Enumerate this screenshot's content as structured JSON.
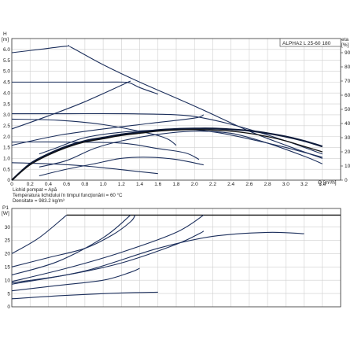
{
  "header": {
    "model_label": "ALPHA2 L 25-60 180",
    "units_right": "eta"
  },
  "notes": [
    "Lichid pompat = Apă",
    "Temperatura lichidului în timpul funcţionării = 60 °C",
    "Densitate = 983.2 kg/m³"
  ],
  "chart_data": [
    {
      "id": "head",
      "type": "line",
      "title": "",
      "ylabel": "H",
      "yunit": "[m]",
      "xlabel": "Q",
      "xunit": "[m³/h]",
      "y2label": "eta",
      "y2unit": "[%]",
      "xlim": [
        0,
        3.6
      ],
      "ylim": [
        0,
        6.5
      ],
      "y2lim": [
        0,
        100
      ],
      "xticks": [
        "0",
        "0.2",
        "0.4",
        "0.6",
        "0.8",
        "1.0",
        "1.2",
        "1.4",
        "1.6",
        "1.8",
        "2.0",
        "2.2",
        "2.4",
        "2.6",
        "2.8",
        "3.0",
        "3.2",
        "3.4"
      ],
      "yticks": [
        "0",
        "0.5",
        "1.0",
        "1.5",
        "2.0",
        "2.5",
        "3.0",
        "3.5",
        "4.0",
        "4.5",
        "5.0",
        "5.5",
        "6.0"
      ],
      "y2ticks": [
        "0",
        "10",
        "20",
        "30",
        "40",
        "50",
        "60",
        "70",
        "80",
        "90"
      ],
      "grid": true,
      "series": [
        {
          "style": "curve",
          "points": [
            [
              0,
              5.85
            ],
            [
              0.3,
              6.0
            ],
            [
              0.6,
              6.15
            ],
            [
              0.65,
              6.1
            ],
            [
              1.0,
              5.3
            ],
            [
              1.4,
              4.5
            ],
            [
              2.0,
              3.4
            ],
            [
              2.6,
              2.25
            ],
            [
              3.0,
              1.6
            ],
            [
              3.4,
              1.0
            ]
          ]
        },
        {
          "style": "curve",
          "points": [
            [
              0,
              4.5
            ],
            [
              0.6,
              4.5
            ],
            [
              1.0,
              4.5
            ],
            [
              1.22,
              4.5
            ],
            [
              1.3,
              4.45
            ],
            [
              1.4,
              4.25
            ],
            [
              1.6,
              3.95
            ]
          ]
        },
        {
          "style": "curve",
          "points": [
            [
              0,
              3.05
            ],
            [
              0.6,
              3.05
            ],
            [
              1.2,
              3.05
            ],
            [
              1.8,
              3.0
            ],
            [
              2.1,
              2.85
            ],
            [
              2.5,
              2.45
            ],
            [
              3.0,
              1.8
            ],
            [
              3.4,
              1.2
            ]
          ]
        },
        {
          "style": "curve",
          "points": [
            [
              0,
              2.8
            ],
            [
              0.5,
              2.75
            ],
            [
              1.0,
              2.55
            ],
            [
              1.5,
              2.15
            ],
            [
              1.7,
              1.9
            ],
            [
              1.8,
              1.6
            ]
          ]
        },
        {
          "style": "curve",
          "points": [
            [
              0,
              1.75
            ],
            [
              0.6,
              1.75
            ],
            [
              1.2,
              1.7
            ],
            [
              1.6,
              1.45
            ],
            [
              1.9,
              1.25
            ],
            [
              2.05,
              0.95
            ]
          ]
        },
        {
          "style": "curve",
          "points": [
            [
              0,
              0.8
            ],
            [
              0.4,
              0.75
            ],
            [
              0.8,
              0.65
            ],
            [
              1.2,
              0.48
            ],
            [
              1.6,
              0.3
            ]
          ]
        },
        {
          "style": "curve",
          "points": [
            [
              0,
              2.35
            ],
            [
              0.4,
              2.95
            ],
            [
              0.8,
              3.6
            ],
            [
              1.3,
              4.55
            ]
          ]
        },
        {
          "style": "curve",
          "points": [
            [
              0,
              1.6
            ],
            [
              0.5,
              2.05
            ],
            [
              1.0,
              2.35
            ],
            [
              1.5,
              2.6
            ],
            [
              2.0,
              2.85
            ],
            [
              2.1,
              3.0
            ]
          ]
        },
        {
          "style": "curve",
          "points": [
            [
              0.3,
              1.2
            ],
            [
              0.5,
              1.5
            ],
            [
              0.8,
              1.95
            ],
            [
              1.2,
              2.2
            ],
            [
              1.6,
              2.3
            ],
            [
              1.9,
              2.35
            ],
            [
              2.3,
              2.15
            ],
            [
              2.8,
              1.7
            ],
            [
              3.0,
              1.5
            ],
            [
              3.4,
              1.05
            ]
          ]
        },
        {
          "style": "curve",
          "points": [
            [
              0.3,
              0.6
            ],
            [
              0.6,
              0.9
            ],
            [
              0.9,
              1.45
            ],
            [
              1.2,
              1.8
            ],
            [
              1.6,
              2.1
            ],
            [
              2.0,
              2.25
            ],
            [
              2.4,
              2.15
            ],
            [
              2.8,
              1.7
            ],
            [
              3.2,
              1.1
            ],
            [
              3.4,
              0.75
            ]
          ]
        },
        {
          "style": "curve",
          "points": [
            [
              0.3,
              0.2
            ],
            [
              0.6,
              0.5
            ],
            [
              0.9,
              0.75
            ],
            [
              1.2,
              1.0
            ],
            [
              1.5,
              1.05
            ],
            [
              1.8,
              0.95
            ],
            [
              2.1,
              0.7
            ]
          ]
        },
        {
          "style": "bold",
          "points": [
            [
              0,
              0
            ],
            [
              0.2,
              0.75
            ],
            [
              0.4,
              1.2
            ],
            [
              0.6,
              1.55
            ],
            [
              0.8,
              1.8
            ],
            [
              1.0,
              1.95
            ],
            [
              1.2,
              2.1
            ],
            [
              1.4,
              2.2
            ],
            [
              1.6,
              2.3
            ],
            [
              1.8,
              2.35
            ],
            [
              2.0,
              2.37
            ],
            [
              2.2,
              2.37
            ],
            [
              2.4,
              2.33
            ],
            [
              2.6,
              2.27
            ],
            [
              2.8,
              2.15
            ],
            [
              3.0,
              2.0
            ],
            [
              3.2,
              1.8
            ],
            [
              3.4,
              1.55
            ]
          ]
        },
        {
          "style": "black",
          "points": [
            [
              0,
              0
            ],
            [
              0.2,
              0.7
            ],
            [
              0.4,
              1.15
            ],
            [
              0.6,
              1.5
            ],
            [
              0.8,
              1.75
            ],
            [
              1.0,
              1.9
            ],
            [
              1.2,
              2.05
            ],
            [
              1.4,
              2.15
            ],
            [
              1.6,
              2.25
            ],
            [
              1.8,
              2.3
            ],
            [
              2.0,
              2.32
            ],
            [
              2.2,
              2.3
            ],
            [
              2.4,
              2.25
            ],
            [
              2.6,
              2.15
            ],
            [
              2.8,
              2.0
            ],
            [
              3.0,
              1.8
            ],
            [
              3.2,
              1.55
            ],
            [
              3.4,
              1.3
            ]
          ]
        }
      ]
    },
    {
      "id": "power",
      "type": "line",
      "title": "",
      "ylabel": "P1",
      "yunit": "[W]",
      "xlim": [
        0,
        3.6
      ],
      "ylim": [
        0,
        37
      ],
      "yticks": [
        "0",
        "5",
        "10",
        "15",
        "20",
        "25",
        "30"
      ],
      "grid": true,
      "series": [
        {
          "style": "black",
          "points": [
            [
              0.6,
              34.5
            ],
            [
              1.0,
              34.5
            ],
            [
              2.0,
              34.5
            ],
            [
              3.0,
              34.5
            ],
            [
              3.6,
              34.5
            ]
          ]
        },
        {
          "style": "curve",
          "points": [
            [
              0,
              20
            ],
            [
              0.3,
              26
            ],
            [
              0.6,
              34.5
            ]
          ]
        },
        {
          "style": "curve",
          "points": [
            [
              0,
              15
            ],
            [
              0.4,
              18.5
            ],
            [
              0.8,
              22
            ],
            [
              1.1,
              27
            ],
            [
              1.3,
              32
            ],
            [
              1.35,
              34.5
            ]
          ]
        },
        {
          "style": "curve",
          "points": [
            [
              0,
              12
            ],
            [
              0.5,
              17
            ],
            [
              1.0,
              26
            ],
            [
              1.3,
              34.5
            ]
          ]
        },
        {
          "style": "curve",
          "points": [
            [
              0,
              9.5
            ],
            [
              0.6,
              14.5
            ],
            [
              1.2,
              20.5
            ],
            [
              1.8,
              28
            ],
            [
              2.1,
              34.5
            ]
          ]
        },
        {
          "style": "curve",
          "points": [
            [
              0,
              9
            ],
            [
              0.6,
              12
            ],
            [
              1.2,
              16.5
            ],
            [
              1.8,
              23.5
            ],
            [
              2.05,
              27.5
            ],
            [
              2.1,
              28.5
            ]
          ]
        },
        {
          "style": "curve",
          "points": [
            [
              0,
              8.5
            ],
            [
              0.8,
              13.5
            ],
            [
              1.6,
              22
            ],
            [
              2.2,
              26.5
            ],
            [
              2.8,
              28
            ],
            [
              3.2,
              27.5
            ]
          ]
        },
        {
          "style": "curve",
          "points": [
            [
              0,
              6
            ],
            [
              0.5,
              8
            ],
            [
              1.0,
              10
            ],
            [
              1.3,
              13
            ],
            [
              1.4,
              14.5
            ]
          ]
        },
        {
          "style": "curve",
          "points": [
            [
              0,
              3
            ],
            [
              0.6,
              4.3
            ],
            [
              1.2,
              5.2
            ],
            [
              1.6,
              5.5
            ]
          ]
        }
      ]
    }
  ]
}
